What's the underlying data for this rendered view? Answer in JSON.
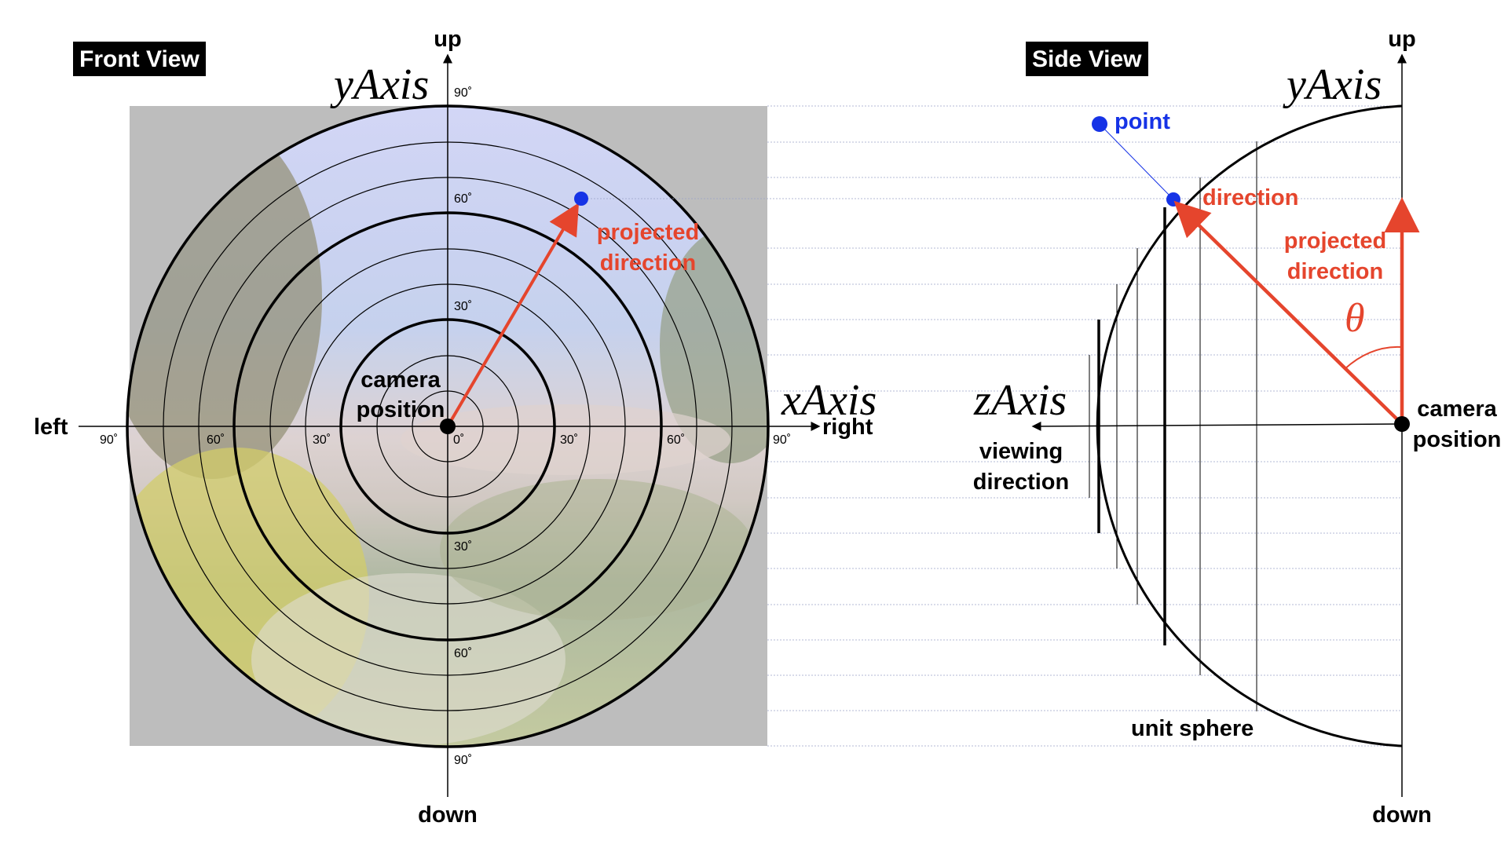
{
  "front_view": {
    "title": "Front View",
    "label_up": "up",
    "label_down": "down",
    "label_left": "left",
    "label_right": "right",
    "y_axis": "yAxis",
    "x_axis": "xAxis",
    "camera_position": [
      "camera",
      "position"
    ],
    "projected_direction": [
      "projected",
      "direction"
    ],
    "ticks_y": [
      "90˚",
      "60˚",
      "30˚",
      "30˚",
      "60˚",
      "90˚"
    ],
    "ticks_x": [
      "90˚",
      "60˚",
      "30˚",
      "0˚",
      "30˚",
      "60˚",
      "90˚"
    ]
  },
  "side_view": {
    "title": "Side View",
    "label_up": "up",
    "label_down": "down",
    "y_axis": "yAxis",
    "z_axis": "zAxis",
    "point": "point",
    "direction": "direction",
    "projected_direction": [
      "projected",
      "direction"
    ],
    "theta": "θ",
    "camera_position": [
      "camera",
      "position"
    ],
    "viewing_direction": [
      "viewing",
      "direction"
    ],
    "unit_sphere": "unit sphere"
  },
  "colors": {
    "accent_red": "#e5452d",
    "point_blue": "#1633e6",
    "image_backdrop": "#bdbdbd"
  }
}
